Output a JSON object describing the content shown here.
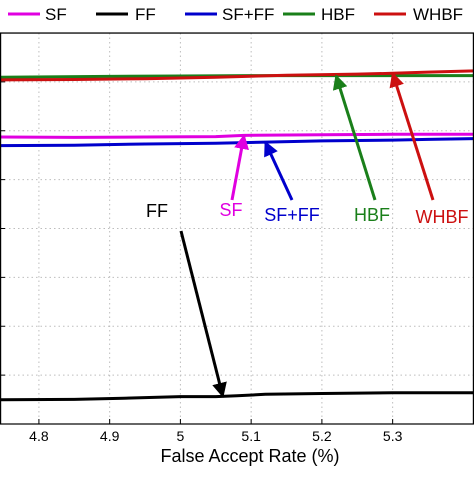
{
  "chart_data": {
    "type": "line",
    "xlabel": "False Accept Rate (%)",
    "x_ticks": [
      4.8,
      4.9,
      5,
      5.1,
      5.2,
      5.3
    ],
    "x_tick_labels": [
      "4.8",
      "4.9",
      "5",
      "5.1",
      "5.2",
      "5.3"
    ],
    "xlim": [
      4.745,
      5.415
    ],
    "y_gridline_count": 8,
    "grid": true,
    "legend_placement": "top",
    "series": [
      {
        "name": "SF",
        "color": "#e000e0",
        "x": [
          4.745,
          4.85,
          4.95,
          5.05,
          5.09,
          5.2,
          5.3,
          5.38,
          5.415
        ],
        "y": [
          0.734,
          0.733,
          0.734,
          0.735,
          0.738,
          0.74,
          0.741,
          0.741,
          0.741
        ]
      },
      {
        "name": "FF",
        "color": "#000000",
        "x": [
          4.745,
          4.85,
          4.92,
          5.0,
          5.05,
          5.08,
          5.12,
          5.2,
          5.3,
          5.415
        ],
        "y": [
          0.062,
          0.063,
          0.066,
          0.07,
          0.07,
          0.072,
          0.076,
          0.078,
          0.08,
          0.08
        ]
      },
      {
        "name": "SF+FF",
        "color": "#0000cc",
        "x": [
          4.745,
          4.85,
          4.95,
          5.05,
          5.12,
          5.2,
          5.3,
          5.35,
          5.415
        ],
        "y": [
          0.712,
          0.713,
          0.716,
          0.718,
          0.721,
          0.724,
          0.726,
          0.728,
          0.73
        ]
      },
      {
        "name": "HBF",
        "color": "#1a7f1a",
        "x": [
          4.745,
          4.9,
          5.0,
          5.1,
          5.2,
          5.3,
          5.415
        ],
        "y": [
          0.887,
          0.889,
          0.89,
          0.891,
          0.891,
          0.891,
          0.891
        ]
      },
      {
        "name": "WHBF",
        "color": "#cc1010",
        "x": [
          4.745,
          4.85,
          4.95,
          5.05,
          5.15,
          5.25,
          5.3,
          5.35,
          5.415
        ],
        "y": [
          0.88,
          0.881,
          0.883,
          0.887,
          0.892,
          0.895,
          0.897,
          0.9,
          0.903
        ]
      }
    ],
    "annotations": [
      {
        "text": "FF",
        "color": "#000000",
        "target_series": 1,
        "target_x": 5.06
      },
      {
        "text": "SF",
        "color": "#e000e0",
        "target_series": 0,
        "target_x": 5.09
      },
      {
        "text": "SF+FF",
        "color": "#0000cc",
        "target_series": 2,
        "target_x": 5.12
      },
      {
        "text": "HBF",
        "color": "#1a7f1a",
        "target_series": 3,
        "target_x": 5.22
      },
      {
        "text": "WHBF",
        "color": "#cc1010",
        "target_series": 4,
        "target_x": 5.3
      }
    ]
  }
}
